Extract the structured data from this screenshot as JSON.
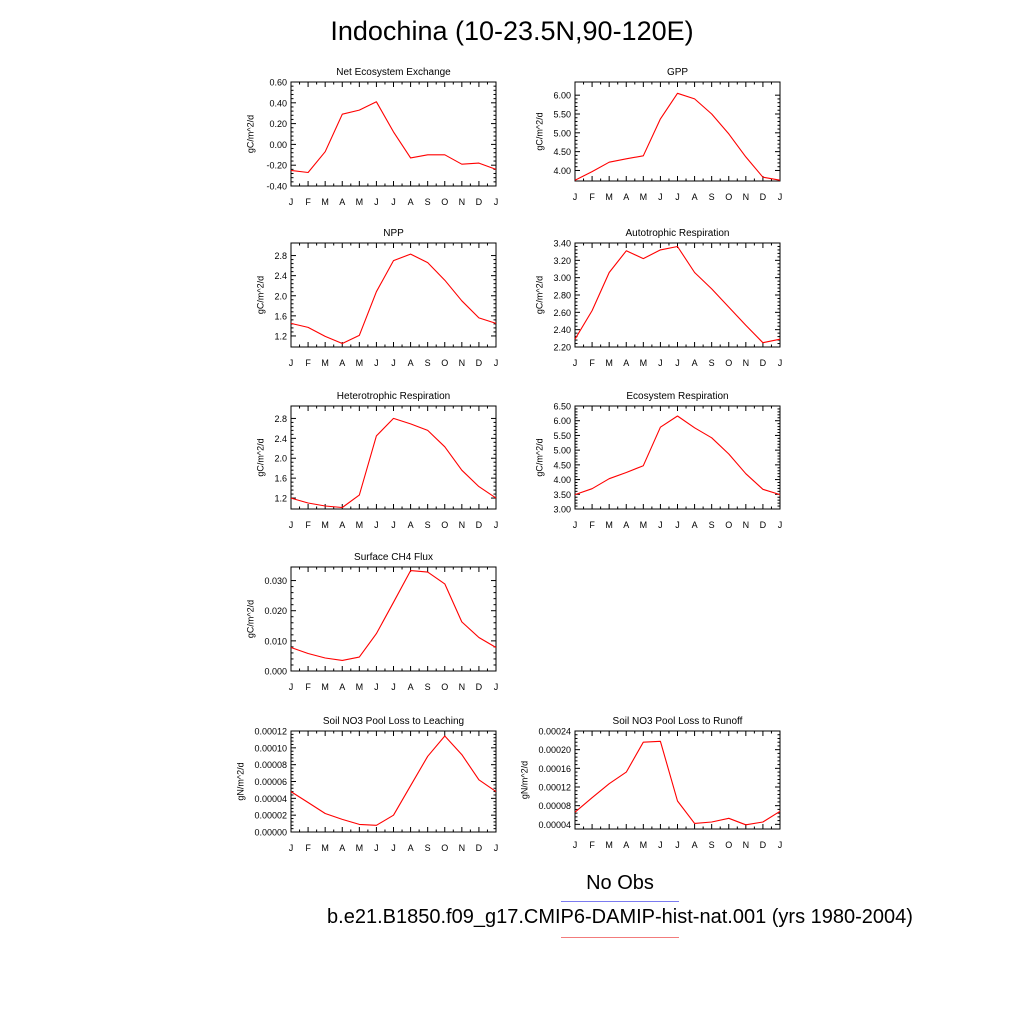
{
  "figure": {
    "title": "Indochina (10-23.5N,90-120E)",
    "legend": {
      "obs_label": "No Obs",
      "obs_color": "#7b7bf0",
      "case_label": "b.e21.B1850.f09_g17.CMIP6-DAMIP-hist-nat.001 (yrs 1980-2004)",
      "case_color": "#f27b7b"
    }
  },
  "chart_data": [
    {
      "type": "line",
      "title": "Net Ecosystem Exchange",
      "ylabel": "gC/m^2/d",
      "xlabel": "",
      "categories": [
        "J",
        "F",
        "M",
        "A",
        "M",
        "J",
        "J",
        "A",
        "S",
        "O",
        "N",
        "D",
        "J"
      ],
      "ylim": [
        -0.4,
        0.6
      ],
      "yticks": [
        -0.4,
        -0.2,
        0.0,
        0.2,
        0.4,
        0.6
      ],
      "ytick_labels": [
        "-0.40",
        "-0.20",
        "0.00",
        "0.20",
        "0.40",
        "0.60"
      ],
      "series": [
        {
          "values": [
            -0.25,
            -0.27,
            -0.07,
            0.29,
            0.33,
            0.41,
            0.12,
            -0.13,
            -0.1,
            -0.1,
            -0.19,
            -0.18,
            -0.24
          ],
          "color": "#ff0000"
        }
      ]
    },
    {
      "type": "line",
      "title": "GPP",
      "ylabel": "gC/m^2/d",
      "xlabel": "",
      "categories": [
        "J",
        "F",
        "M",
        "A",
        "M",
        "J",
        "J",
        "A",
        "S",
        "O",
        "N",
        "D",
        "J"
      ],
      "ylim": [
        3.72,
        6.35
      ],
      "yticks": [
        4.0,
        4.5,
        5.0,
        5.5,
        6.0
      ],
      "ytick_labels": [
        "4.00",
        "4.50",
        "5.00",
        "5.50",
        "6.00"
      ],
      "series": [
        {
          "values": [
            3.74,
            3.97,
            4.22,
            4.31,
            4.39,
            5.37,
            6.05,
            5.9,
            5.5,
            4.97,
            4.36,
            3.82,
            3.74
          ],
          "color": "#ff0000"
        }
      ]
    },
    {
      "type": "line",
      "title": "NPP",
      "ylabel": "gC/m^2/d",
      "xlabel": "",
      "categories": [
        "J",
        "F",
        "M",
        "A",
        "M",
        "J",
        "J",
        "A",
        "S",
        "O",
        "N",
        "D",
        "J"
      ],
      "ylim": [
        0.98,
        3.05
      ],
      "yticks": [
        1.2,
        1.6,
        2.0,
        2.4,
        2.8
      ],
      "ytick_labels": [
        "1.2",
        "1.6",
        "2.0",
        "2.4",
        "2.8"
      ],
      "series": [
        {
          "values": [
            1.45,
            1.37,
            1.19,
            1.05,
            1.21,
            2.08,
            2.7,
            2.83,
            2.66,
            2.31,
            1.9,
            1.56,
            1.45
          ],
          "color": "#ff0000"
        }
      ]
    },
    {
      "type": "line",
      "title": "Autotrophic Respiration",
      "ylabel": "gC/m^2/d",
      "xlabel": "",
      "categories": [
        "J",
        "F",
        "M",
        "A",
        "M",
        "J",
        "J",
        "A",
        "S",
        "O",
        "N",
        "D",
        "J"
      ],
      "ylim": [
        2.2,
        3.4
      ],
      "yticks": [
        2.2,
        2.4,
        2.6,
        2.8,
        3.0,
        3.2,
        3.4
      ],
      "ytick_labels": [
        "2.20",
        "2.40",
        "2.60",
        "2.80",
        "3.00",
        "3.20",
        "3.40"
      ],
      "series": [
        {
          "values": [
            2.29,
            2.62,
            3.06,
            3.31,
            3.22,
            3.32,
            3.36,
            3.06,
            2.87,
            2.66,
            2.45,
            2.25,
            2.29
          ],
          "color": "#ff0000"
        }
      ]
    },
    {
      "type": "line",
      "title": "Heterotrophic Respiration",
      "ylabel": "gC/m^2/d",
      "xlabel": "",
      "categories": [
        "J",
        "F",
        "M",
        "A",
        "M",
        "J",
        "J",
        "A",
        "S",
        "O",
        "N",
        "D",
        "J"
      ],
      "ylim": [
        0.98,
        3.05
      ],
      "yticks": [
        1.2,
        1.6,
        2.0,
        2.4,
        2.8
      ],
      "ytick_labels": [
        "1.2",
        "1.6",
        "2.0",
        "2.4",
        "2.8"
      ],
      "series": [
        {
          "values": [
            1.2,
            1.1,
            1.04,
            1.01,
            1.26,
            2.45,
            2.8,
            2.69,
            2.56,
            2.23,
            1.76,
            1.43,
            1.2
          ],
          "color": "#ff0000"
        }
      ]
    },
    {
      "type": "line",
      "title": "Ecosystem Respiration",
      "ylabel": "gC/m^2/d",
      "xlabel": "",
      "categories": [
        "J",
        "F",
        "M",
        "A",
        "M",
        "J",
        "J",
        "A",
        "S",
        "O",
        "N",
        "D",
        "J"
      ],
      "ylim": [
        3.0,
        6.5
      ],
      "yticks": [
        3.0,
        3.5,
        4.0,
        4.5,
        5.0,
        5.5,
        6.0,
        6.5
      ],
      "ytick_labels": [
        "3.00",
        "3.50",
        "4.00",
        "4.50",
        "5.00",
        "5.50",
        "6.00",
        "6.50"
      ],
      "series": [
        {
          "values": [
            3.49,
            3.69,
            4.03,
            4.24,
            4.47,
            5.78,
            6.16,
            5.76,
            5.42,
            4.87,
            4.2,
            3.67,
            3.49
          ],
          "color": "#ff0000"
        }
      ]
    },
    {
      "type": "line",
      "title": "Surface CH4 Flux",
      "ylabel": "gC/m^2/d",
      "xlabel": "",
      "categories": [
        "J",
        "F",
        "M",
        "A",
        "M",
        "J",
        "J",
        "A",
        "S",
        "O",
        "N",
        "D",
        "J"
      ],
      "ylim": [
        0.0,
        0.0345
      ],
      "yticks": [
        0.0,
        0.01,
        0.02,
        0.03
      ],
      "ytick_labels": [
        "0.000",
        "0.010",
        "0.020",
        "0.030"
      ],
      "series": [
        {
          "values": [
            0.0078,
            0.0058,
            0.0043,
            0.0035,
            0.0046,
            0.0124,
            0.0228,
            0.0333,
            0.0328,
            0.0289,
            0.0163,
            0.0111,
            0.0078
          ],
          "color": "#ff0000"
        }
      ]
    },
    {
      "type": "line",
      "title": "Soil NO3 Pool Loss to Leaching",
      "ylabel": "gN/m^2/d",
      "xlabel": "",
      "categories": [
        "J",
        "F",
        "M",
        "A",
        "M",
        "J",
        "J",
        "A",
        "S",
        "O",
        "N",
        "D",
        "J"
      ],
      "ylim": [
        0.0,
        0.00012
      ],
      "yticks": [
        0.0,
        2e-05,
        4e-05,
        6e-05,
        8e-05,
        0.0001,
        0.00012
      ],
      "ytick_labels": [
        "0.00000",
        "0.00002",
        "0.00004",
        "0.00006",
        "0.00008",
        "0.00010",
        "0.00012"
      ],
      "series": [
        {
          "values": [
            4.8e-05,
            3.5e-05,
            2.2e-05,
            1.5e-05,
            9e-06,
            8e-06,
            2e-05,
            5.5e-05,
            9e-05,
            0.000114,
            9.2e-05,
            6.2e-05,
            4.8e-05
          ],
          "color": "#ff0000"
        }
      ]
    },
    {
      "type": "line",
      "title": "Soil NO3 Pool Loss to Runoff",
      "ylabel": "gN/m^2/d",
      "xlabel": "",
      "categories": [
        "J",
        "F",
        "M",
        "A",
        "M",
        "J",
        "J",
        "A",
        "S",
        "O",
        "N",
        "D",
        "J"
      ],
      "ylim": [
        3e-05,
        0.00024
      ],
      "yticks": [
        4e-05,
        8e-05,
        0.00012,
        0.00016,
        0.0002,
        0.00024
      ],
      "ytick_labels": [
        "0.00004",
        "0.00008",
        "0.00012",
        "0.00016",
        "0.00020",
        "0.00024"
      ],
      "series": [
        {
          "values": [
            6.6e-05,
            9.7e-05,
            0.000127,
            0.000152,
            0.000216,
            0.000218,
            9e-05,
            4.2e-05,
            4.5e-05,
            5.3e-05,
            3.9e-05,
            4.5e-05,
            6.8e-05
          ],
          "color": "#ff0000"
        }
      ]
    }
  ]
}
